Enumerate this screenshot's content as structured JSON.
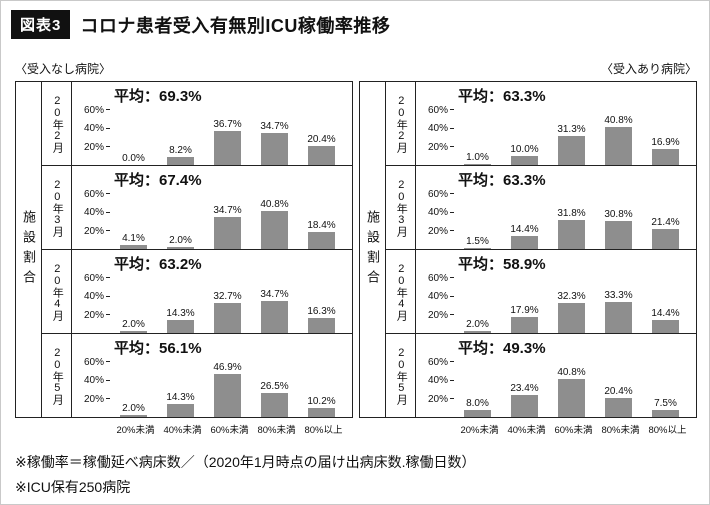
{
  "header": {
    "badge": "図表3",
    "title": "コロナ患者受入有無別ICU稼働率推移"
  },
  "panel_headings": {
    "left": "〈受入なし病院〉",
    "right": "〈受入あり病院〉"
  },
  "side_label": "施設割合",
  "labels": {
    "average_prefix": "平均："
  },
  "colors": {
    "bar": "#8e8e8e",
    "badge_bg": "#111111",
    "border": "#222222"
  },
  "notes": [
    "※稼働率＝稼働延べ病床数／（2020年1月時点の届け出病床数.稼働日数）",
    "※ICU保有250病院"
  ],
  "chart_data": [
    {
      "type": "bar",
      "title": "受入なし病院",
      "ylabel": "施設割合",
      "xlabel": "",
      "categories": [
        "20%未満",
        "40%未満",
        "60%未満",
        "80%未満",
        "80%以上"
      ],
      "y_ticks": [
        20,
        40,
        60
      ],
      "ylim": [
        0,
        90
      ],
      "unit": "%",
      "series": [
        {
          "name": "20年2月",
          "average": 69.3,
          "values": [
            0.0,
            8.2,
            36.7,
            34.7,
            20.4
          ]
        },
        {
          "name": "20年3月",
          "average": 67.4,
          "values": [
            4.1,
            2.0,
            34.7,
            40.8,
            18.4
          ]
        },
        {
          "name": "20年4月",
          "average": 63.2,
          "values": [
            2.0,
            14.3,
            32.7,
            34.7,
            16.3
          ]
        },
        {
          "name": "20年5月",
          "average": 56.1,
          "values": [
            2.0,
            14.3,
            46.9,
            26.5,
            10.2
          ]
        }
      ]
    },
    {
      "type": "bar",
      "title": "受入あり病院",
      "ylabel": "施設割合",
      "xlabel": "",
      "categories": [
        "20%未満",
        "40%未満",
        "60%未満",
        "80%未満",
        "80%以上"
      ],
      "y_ticks": [
        20,
        40,
        60
      ],
      "ylim": [
        0,
        90
      ],
      "unit": "%",
      "series": [
        {
          "name": "20年2月",
          "average": 63.3,
          "values": [
            1.0,
            10.0,
            31.3,
            40.8,
            16.9
          ]
        },
        {
          "name": "20年3月",
          "average": 63.3,
          "values": [
            1.5,
            14.4,
            31.8,
            30.8,
            21.4
          ]
        },
        {
          "name": "20年4月",
          "average": 58.9,
          "values": [
            2.0,
            17.9,
            32.3,
            33.3,
            14.4
          ]
        },
        {
          "name": "20年5月",
          "average": 49.3,
          "values": [
            8.0,
            23.4,
            40.8,
            20.4,
            7.5
          ]
        }
      ]
    }
  ]
}
